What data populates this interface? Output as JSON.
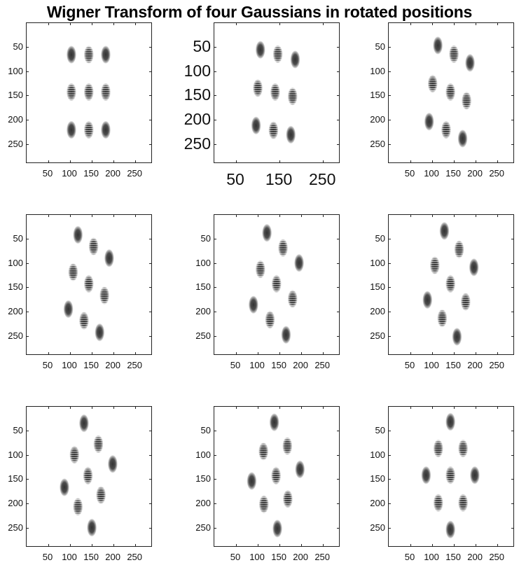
{
  "figure": {
    "title": "Wigner Transform of four Gaussians in rotated positions"
  },
  "style": {
    "blob_color": "#2e2e2e",
    "fringe_color": "#ffffff",
    "axis_color": "#222222"
  },
  "chart_data": [
    {
      "type": "scatter",
      "marker": "gaussian-blob",
      "xlim": [
        0,
        290
      ],
      "ylim": [
        0,
        290
      ],
      "y_direction": "reversed",
      "x_ticks": [
        50,
        100,
        150,
        200,
        250
      ],
      "x_tick_labels": [
        "50",
        "100",
        "150",
        "200",
        "250"
      ],
      "y_ticks": [
        50,
        100,
        150,
        200,
        250
      ],
      "y_tick_labels": [
        "50",
        "100",
        "150",
        "200",
        "250"
      ],
      "points": [
        {
          "x": 103,
          "y": 65,
          "kind": "gaussian"
        },
        {
          "x": 143,
          "y": 65,
          "kind": "cross-term"
        },
        {
          "x": 182,
          "y": 65,
          "kind": "gaussian"
        },
        {
          "x": 103,
          "y": 142,
          "kind": "cross-term"
        },
        {
          "x": 143,
          "y": 142,
          "kind": "cross-term"
        },
        {
          "x": 182,
          "y": 142,
          "kind": "cross-term"
        },
        {
          "x": 103,
          "y": 220,
          "kind": "gaussian"
        },
        {
          "x": 143,
          "y": 220,
          "kind": "cross-term"
        },
        {
          "x": 182,
          "y": 220,
          "kind": "gaussian"
        }
      ]
    },
    {
      "type": "scatter",
      "marker": "gaussian-blob",
      "xlim": [
        0,
        290
      ],
      "ylim": [
        0,
        290
      ],
      "y_direction": "reversed",
      "x_ticks": [
        50,
        150,
        250
      ],
      "x_tick_labels": [
        "50",
        "150",
        "250"
      ],
      "y_ticks": [
        50,
        100,
        150,
        200,
        250
      ],
      "y_tick_labels": [
        "50",
        "100",
        "150",
        "200",
        "250"
      ],
      "points": [
        {
          "x": 106,
          "y": 55,
          "kind": "gaussian"
        },
        {
          "x": 146,
          "y": 64,
          "kind": "cross-term"
        },
        {
          "x": 186,
          "y": 75,
          "kind": "gaussian"
        },
        {
          "x": 100,
          "y": 134,
          "kind": "cross-term"
        },
        {
          "x": 140,
          "y": 142,
          "kind": "cross-term"
        },
        {
          "x": 180,
          "y": 151,
          "kind": "cross-term"
        },
        {
          "x": 96,
          "y": 211,
          "kind": "gaussian"
        },
        {
          "x": 136,
          "y": 221,
          "kind": "cross-term"
        },
        {
          "x": 176,
          "y": 230,
          "kind": "gaussian"
        }
      ]
    },
    {
      "type": "scatter",
      "marker": "gaussian-blob",
      "xlim": [
        0,
        290
      ],
      "ylim": [
        0,
        290
      ],
      "y_direction": "reversed",
      "x_ticks": [
        50,
        100,
        150,
        200,
        250
      ],
      "x_tick_labels": [
        "50",
        "100",
        "150",
        "200",
        "250"
      ],
      "y_ticks": [
        50,
        100,
        150,
        200,
        250
      ],
      "y_tick_labels": [
        "50",
        "100",
        "150",
        "200",
        "250"
      ],
      "points": [
        {
          "x": 113,
          "y": 46,
          "kind": "gaussian"
        },
        {
          "x": 150,
          "y": 64,
          "kind": "cross-term"
        },
        {
          "x": 187,
          "y": 82,
          "kind": "gaussian"
        },
        {
          "x": 101,
          "y": 125,
          "kind": "cross-term"
        },
        {
          "x": 142,
          "y": 142,
          "kind": "cross-term"
        },
        {
          "x": 179,
          "y": 160,
          "kind": "cross-term"
        },
        {
          "x": 93,
          "y": 203,
          "kind": "gaussian"
        },
        {
          "x": 132,
          "y": 220,
          "kind": "cross-term"
        },
        {
          "x": 170,
          "y": 238,
          "kind": "gaussian"
        }
      ]
    },
    {
      "type": "scatter",
      "marker": "gaussian-blob",
      "xlim": [
        0,
        290
      ],
      "ylim": [
        0,
        290
      ],
      "y_direction": "reversed",
      "x_ticks": [
        50,
        100,
        150,
        200,
        250
      ],
      "x_tick_labels": [
        "50",
        "100",
        "150",
        "200",
        "250"
      ],
      "y_ticks": [
        50,
        100,
        150,
        200,
        250
      ],
      "y_tick_labels": [
        "50",
        "100",
        "150",
        "200",
        "250"
      ],
      "points": [
        {
          "x": 118,
          "y": 41,
          "kind": "gaussian"
        },
        {
          "x": 154,
          "y": 65,
          "kind": "cross-term"
        },
        {
          "x": 190,
          "y": 89,
          "kind": "gaussian"
        },
        {
          "x": 107,
          "y": 118,
          "kind": "cross-term"
        },
        {
          "x": 143,
          "y": 142,
          "kind": "cross-term"
        },
        {
          "x": 179,
          "y": 166,
          "kind": "cross-term"
        },
        {
          "x": 96,
          "y": 194,
          "kind": "gaussian"
        },
        {
          "x": 132,
          "y": 218,
          "kind": "cross-term"
        },
        {
          "x": 168,
          "y": 242,
          "kind": "gaussian"
        }
      ]
    },
    {
      "type": "scatter",
      "marker": "gaussian-blob",
      "xlim": [
        0,
        290
      ],
      "ylim": [
        0,
        290
      ],
      "y_direction": "reversed",
      "x_ticks": [
        50,
        100,
        150,
        200,
        250
      ],
      "x_tick_labels": [
        "50",
        "100",
        "150",
        "200",
        "250"
      ],
      "y_ticks": [
        50,
        100,
        150,
        200,
        250
      ],
      "y_tick_labels": [
        "50",
        "100",
        "150",
        "200",
        "250"
      ],
      "points": [
        {
          "x": 121,
          "y": 37,
          "kind": "gaussian"
        },
        {
          "x": 158,
          "y": 68,
          "kind": "cross-term"
        },
        {
          "x": 195,
          "y": 99,
          "kind": "gaussian"
        },
        {
          "x": 106,
          "y": 112,
          "kind": "cross-term"
        },
        {
          "x": 143,
          "y": 142,
          "kind": "cross-term"
        },
        {
          "x": 180,
          "y": 173,
          "kind": "cross-term"
        },
        {
          "x": 90,
          "y": 185,
          "kind": "gaussian"
        },
        {
          "x": 128,
          "y": 216,
          "kind": "cross-term"
        },
        {
          "x": 165,
          "y": 247,
          "kind": "gaussian"
        }
      ]
    },
    {
      "type": "scatter",
      "marker": "gaussian-blob",
      "xlim": [
        0,
        290
      ],
      "ylim": [
        0,
        290
      ],
      "y_direction": "reversed",
      "x_ticks": [
        50,
        100,
        150,
        200,
        250
      ],
      "x_tick_labels": [
        "50",
        "100",
        "150",
        "200",
        "250"
      ],
      "y_ticks": [
        50,
        100,
        150,
        200,
        250
      ],
      "y_tick_labels": [
        "50",
        "100",
        "150",
        "200",
        "250"
      ],
      "points": [
        {
          "x": 128,
          "y": 33,
          "kind": "gaussian"
        },
        {
          "x": 162,
          "y": 71,
          "kind": "cross-term"
        },
        {
          "x": 196,
          "y": 108,
          "kind": "gaussian"
        },
        {
          "x": 106,
          "y": 104,
          "kind": "cross-term"
        },
        {
          "x": 142,
          "y": 142,
          "kind": "cross-term"
        },
        {
          "x": 177,
          "y": 179,
          "kind": "cross-term"
        },
        {
          "x": 89,
          "y": 175,
          "kind": "gaussian"
        },
        {
          "x": 123,
          "y": 213,
          "kind": "cross-term"
        },
        {
          "x": 157,
          "y": 251,
          "kind": "gaussian"
        }
      ]
    },
    {
      "type": "scatter",
      "marker": "gaussian-blob",
      "xlim": [
        0,
        290
      ],
      "ylim": [
        0,
        290
      ],
      "y_direction": "reversed",
      "x_ticks": [
        50,
        100,
        150,
        200,
        250
      ],
      "x_tick_labels": [
        "50",
        "100",
        "150",
        "200",
        "250"
      ],
      "y_ticks": [
        50,
        100,
        150,
        200,
        250
      ],
      "y_tick_labels": [
        "50",
        "100",
        "150",
        "200",
        "250"
      ],
      "points": [
        {
          "x": 132,
          "y": 34,
          "kind": "gaussian"
        },
        {
          "x": 165,
          "y": 77,
          "kind": "cross-term"
        },
        {
          "x": 198,
          "y": 118,
          "kind": "gaussian"
        },
        {
          "x": 110,
          "y": 99,
          "kind": "cross-term"
        },
        {
          "x": 141,
          "y": 142,
          "kind": "cross-term"
        },
        {
          "x": 171,
          "y": 182,
          "kind": "cross-term"
        },
        {
          "x": 87,
          "y": 166,
          "kind": "gaussian"
        },
        {
          "x": 118,
          "y": 206,
          "kind": "cross-term"
        },
        {
          "x": 150,
          "y": 249,
          "kind": "gaussian"
        }
      ]
    },
    {
      "type": "scatter",
      "marker": "gaussian-blob",
      "xlim": [
        0,
        290
      ],
      "ylim": [
        0,
        290
      ],
      "y_direction": "reversed",
      "x_ticks": [
        50,
        100,
        150,
        200,
        250
      ],
      "x_tick_labels": [
        "50",
        "100",
        "150",
        "200",
        "250"
      ],
      "y_ticks": [
        50,
        100,
        150,
        200,
        250
      ],
      "y_tick_labels": [
        "50",
        "100",
        "150",
        "200",
        "250"
      ],
      "points": [
        {
          "x": 138,
          "y": 32,
          "kind": "gaussian"
        },
        {
          "x": 168,
          "y": 81,
          "kind": "cross-term"
        },
        {
          "x": 197,
          "y": 129,
          "kind": "gaussian"
        },
        {
          "x": 113,
          "y": 92,
          "kind": "cross-term"
        },
        {
          "x": 142,
          "y": 142,
          "kind": "cross-term"
        },
        {
          "x": 169,
          "y": 190,
          "kind": "cross-term"
        },
        {
          "x": 86,
          "y": 153,
          "kind": "gaussian"
        },
        {
          "x": 114,
          "y": 201,
          "kind": "cross-term"
        },
        {
          "x": 145,
          "y": 251,
          "kind": "gaussian"
        }
      ]
    },
    {
      "type": "scatter",
      "marker": "gaussian-blob",
      "xlim": [
        0,
        290
      ],
      "ylim": [
        0,
        290
      ],
      "y_direction": "reversed",
      "x_ticks": [
        50,
        100,
        150,
        200,
        250
      ],
      "x_tick_labels": [
        "50",
        "100",
        "150",
        "200",
        "250"
      ],
      "y_ticks": [
        50,
        100,
        150,
        200,
        250
      ],
      "y_tick_labels": [
        "50",
        "100",
        "150",
        "200",
        "250"
      ],
      "points": [
        {
          "x": 142,
          "y": 31,
          "kind": "gaussian"
        },
        {
          "x": 171,
          "y": 86,
          "kind": "cross-term"
        },
        {
          "x": 198,
          "y": 141,
          "kind": "gaussian"
        },
        {
          "x": 114,
          "y": 86,
          "kind": "cross-term"
        },
        {
          "x": 142,
          "y": 141,
          "kind": "cross-term"
        },
        {
          "x": 171,
          "y": 198,
          "kind": "cross-term"
        },
        {
          "x": 86,
          "y": 141,
          "kind": "gaussian"
        },
        {
          "x": 114,
          "y": 198,
          "kind": "cross-term"
        },
        {
          "x": 142,
          "y": 253,
          "kind": "gaussian"
        }
      ]
    }
  ]
}
